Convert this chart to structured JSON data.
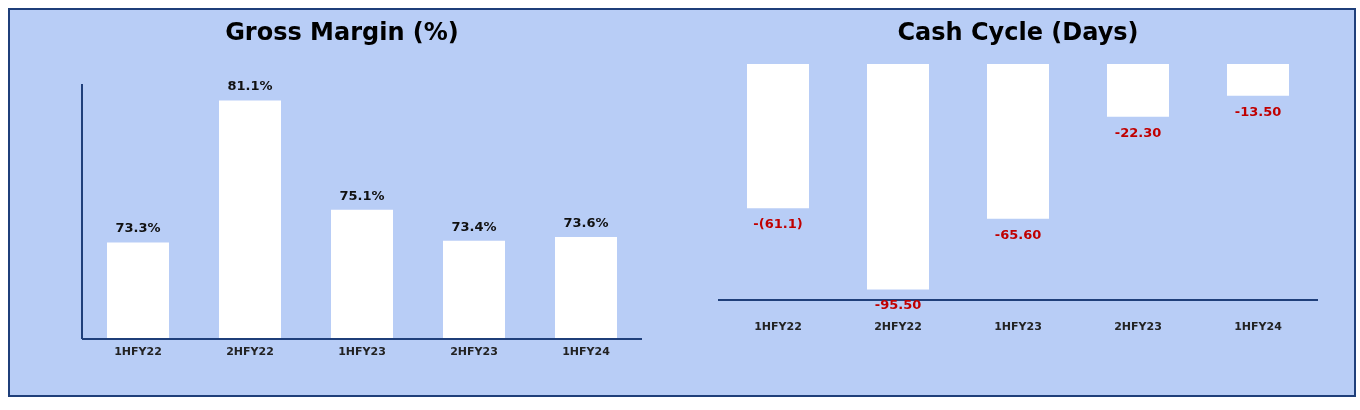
{
  "chart_data": [
    {
      "type": "bar",
      "title": "Gross Margin (%)",
      "categories": [
        "1HFY22",
        "2HFY22",
        "1HFY23",
        "2HFY23",
        "1HFY24"
      ],
      "values": [
        73.3,
        81.1,
        75.1,
        73.4,
        73.6
      ],
      "color": "#ffffff",
      "ylim": [
        68,
        82
      ],
      "value_labels": [
        "73.3%",
        "81.1%",
        "75.1%",
        "73.4%",
        "73.6%"
      ],
      "tick_labels": "x",
      "grid": false,
      "legend": false
    },
    {
      "type": "bar",
      "title": "Cash Cycle (Days)",
      "categories": [
        "1HFY22",
        "2HFY22",
        "1HFY23",
        "2HFY23",
        "1HFY24"
      ],
      "values": [
        -61.1,
        -95.5,
        -65.6,
        -22.3,
        -13.5
      ],
      "color": "#ffffff",
      "value_labels": [
        "-(61.1)",
        "-95.50",
        "-65.60",
        "-22.30",
        "-13.50"
      ],
      "tick_labels": "x",
      "grid": false,
      "legend": false
    }
  ]
}
